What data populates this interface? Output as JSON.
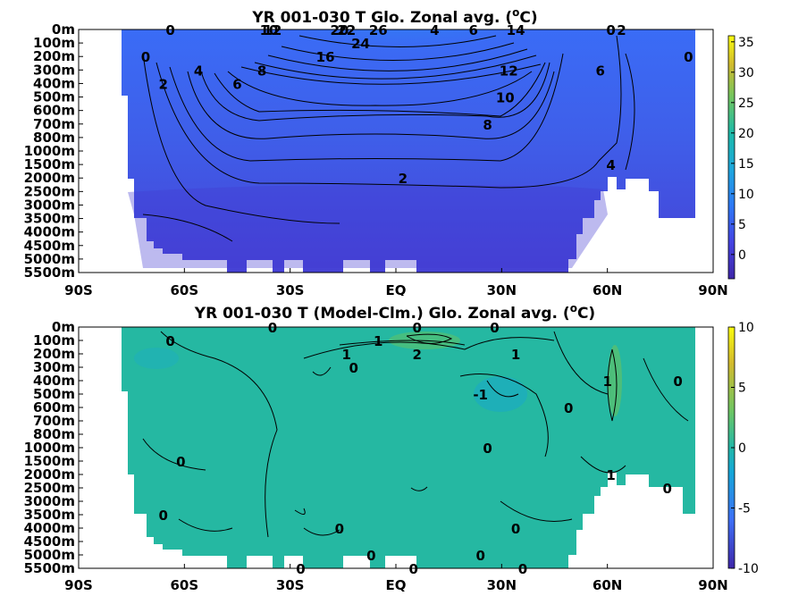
{
  "chart_data": [
    {
      "type": "heatmap",
      "title": "YR 001-030 T Glo. Zonal avg. (",
      "title_sup": "o",
      "title_end": "C)",
      "xticks": [
        "90S",
        "60S",
        "30S",
        "EQ",
        "30N",
        "60N",
        "90N"
      ],
      "yticks": [
        "0m",
        "100m",
        "200m",
        "300m",
        "400m",
        "500m",
        "600m",
        "700m",
        "800m",
        "1000m",
        "1500m",
        "2000m",
        "2500m",
        "3000m",
        "3500m",
        "4000m",
        "4500m",
        "5000m",
        "5500m"
      ],
      "xlim": [
        -90,
        90
      ],
      "colorbar": {
        "ticks": [
          "35",
          "30",
          "25",
          "20",
          "15",
          "10",
          "5",
          "0"
        ],
        "range": [
          -4,
          36
        ],
        "colormap": "parula"
      },
      "contour_labels": [
        {
          "text": "26",
          "x": -5,
          "y": "50m"
        },
        {
          "text": "24",
          "x": -10,
          "y": "100m"
        },
        {
          "text": "22",
          "x": -14,
          "y": "150m"
        },
        {
          "text": "16",
          "x": -20,
          "y": "200m"
        },
        {
          "text": "20",
          "x": -16,
          "y": "180m"
        },
        {
          "text": "12",
          "x": -35,
          "y": "150m"
        },
        {
          "text": "10",
          "x": -36,
          "y": "250m"
        },
        {
          "text": "8",
          "x": -38,
          "y": "300m"
        },
        {
          "text": "6",
          "x": -45,
          "y": "400m"
        },
        {
          "text": "4",
          "x": -56,
          "y": "300m"
        },
        {
          "text": "2",
          "x": -66,
          "y": "400m"
        },
        {
          "text": "0",
          "x": -71,
          "y": "200m"
        },
        {
          "text": "14",
          "x": 34,
          "y": "150m"
        },
        {
          "text": "12",
          "x": 32,
          "y": "300m"
        },
        {
          "text": "10",
          "x": 31,
          "y": "500m"
        },
        {
          "text": "8",
          "x": 26,
          "y": "700m"
        },
        {
          "text": "6",
          "x": 22,
          "y": "900m"
        },
        {
          "text": "4",
          "x": 11,
          "y": "1400m"
        },
        {
          "text": "2",
          "x": 2,
          "y": "2000m"
        },
        {
          "text": "0",
          "x": -64,
          "y": "2800m"
        },
        {
          "text": "6",
          "x": 58,
          "y": "300m"
        },
        {
          "text": "2",
          "x": 64,
          "y": "900m"
        },
        {
          "text": "0",
          "x": 61,
          "y": "1100m"
        },
        {
          "text": "4",
          "x": 61,
          "y": "1500m"
        },
        {
          "text": "0",
          "x": 83,
          "y": "200m"
        }
      ]
    },
    {
      "type": "heatmap",
      "title": "YR 001-030 T (Model-Clm.) Glo. Zonal avg. (",
      "title_sup": "o",
      "title_end": "C)",
      "xticks": [
        "90S",
        "60S",
        "30S",
        "EQ",
        "30N",
        "60N",
        "90N"
      ],
      "yticks": [
        "0m",
        "100m",
        "200m",
        "300m",
        "400m",
        "500m",
        "600m",
        "700m",
        "800m",
        "1000m",
        "1500m",
        "2000m",
        "2500m",
        "3000m",
        "3500m",
        "4000m",
        "4500m",
        "5000m",
        "5500m"
      ],
      "xlim": [
        -90,
        90
      ],
      "colorbar": {
        "ticks": [
          "10",
          "5",
          "0",
          "-5",
          "-10"
        ],
        "range": [
          -10,
          10
        ],
        "colormap": "parula"
      },
      "contour_labels": [
        {
          "text": "0",
          "x": -35,
          "y": "0m"
        },
        {
          "text": "0",
          "x": -64,
          "y": "100m"
        },
        {
          "text": "1",
          "x": -14,
          "y": "200m"
        },
        {
          "text": "1",
          "x": -5,
          "y": "100m"
        },
        {
          "text": "0",
          "x": -12,
          "y": "300m"
        },
        {
          "text": "2",
          "x": 6,
          "y": "200m"
        },
        {
          "text": "0",
          "x": 6,
          "y": "0m"
        },
        {
          "text": "0",
          "x": 28,
          "y": "0m"
        },
        {
          "text": "1",
          "x": 34,
          "y": "200m"
        },
        {
          "text": "-1",
          "x": 24,
          "y": "500m"
        },
        {
          "text": "0",
          "x": 49,
          "y": "600m"
        },
        {
          "text": "1",
          "x": 60,
          "y": "400m"
        },
        {
          "text": "0",
          "x": 80,
          "y": "400m"
        },
        {
          "text": "0",
          "x": 26,
          "y": "1000m"
        },
        {
          "text": "0",
          "x": -61,
          "y": "1500m"
        },
        {
          "text": "1",
          "x": 61,
          "y": "2000m"
        },
        {
          "text": "0",
          "x": 77,
          "y": "2500m"
        },
        {
          "text": "0",
          "x": -66,
          "y": "3500m"
        },
        {
          "text": "0",
          "x": -16,
          "y": "4000m"
        },
        {
          "text": "0",
          "x": 34,
          "y": "4000m"
        },
        {
          "text": "0",
          "x": -7,
          "y": "5000m"
        },
        {
          "text": "0",
          "x": -27,
          "y": "5500m"
        },
        {
          "text": "0",
          "x": 24,
          "y": "5000m"
        },
        {
          "text": "0",
          "x": 5,
          "y": "5500m"
        },
        {
          "text": "0",
          "x": 36,
          "y": "5500m"
        }
      ]
    }
  ]
}
